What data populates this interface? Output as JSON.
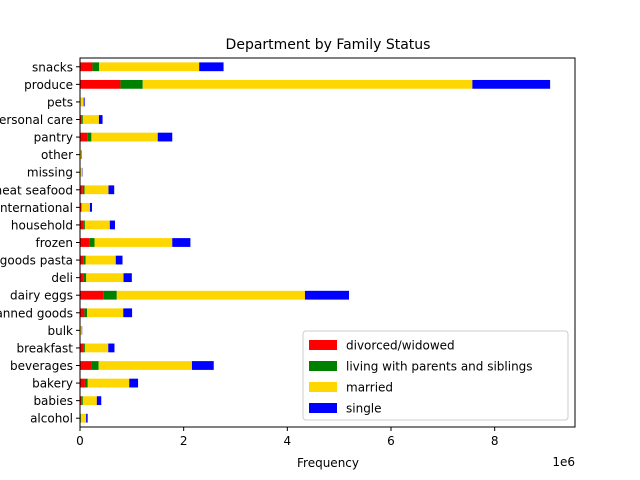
{
  "chart_data": {
    "type": "bar",
    "orientation": "horizontal",
    "stacked": true,
    "title": "Department by Family Status",
    "xlabel": "Frequency",
    "ylabel": "",
    "x_scale_label": "1e6",
    "xlim": [
      0,
      9550000
    ],
    "x_ticks": [
      0,
      2000000,
      4000000,
      6000000,
      8000000
    ],
    "x_tick_labels": [
      "0",
      "2",
      "4",
      "6",
      "8"
    ],
    "grid": false,
    "legend_position": "lower-right",
    "categories": [
      "alcohol",
      "babies",
      "bakery",
      "beverages",
      "breakfast",
      "bulk",
      "canned goods",
      "dairy eggs",
      "deli",
      "dry goods pasta",
      "frozen",
      "household",
      "international",
      "meat seafood",
      "missing",
      "other",
      "pantry",
      "personal care",
      "pets",
      "produce",
      "snacks"
    ],
    "series": [
      {
        "name": "divorced/widowed",
        "color": "#ff0000",
        "values": [
          12000,
          35000,
          95000,
          230000,
          60000,
          3000,
          85000,
          450000,
          75000,
          70000,
          180000,
          60000,
          20000,
          55000,
          5000,
          3000,
          140000,
          35000,
          7000,
          780000,
          240000
        ]
      },
      {
        "name": "living with parents and siblings",
        "color": "#008000",
        "values": [
          6000,
          20000,
          55000,
          130000,
          35000,
          2000,
          50000,
          260000,
          45000,
          40000,
          100000,
          35000,
          12000,
          35000,
          3000,
          2000,
          80000,
          20000,
          4000,
          430000,
          130000
        ]
      },
      {
        "name": "married",
        "color": "#ffd700",
        "values": [
          100000,
          270000,
          800000,
          1800000,
          450000,
          30000,
          700000,
          3630000,
          720000,
          580000,
          1500000,
          480000,
          160000,
          460000,
          35000,
          20000,
          1280000,
          310000,
          60000,
          6360000,
          1930000
        ]
      },
      {
        "name": "single",
        "color": "#0000ff",
        "values": [
          30000,
          85000,
          170000,
          420000,
          120000,
          7000,
          170000,
          850000,
          160000,
          130000,
          350000,
          100000,
          40000,
          110000,
          7000,
          8000,
          280000,
          70000,
          19000,
          1500000,
          470000
        ]
      }
    ]
  }
}
